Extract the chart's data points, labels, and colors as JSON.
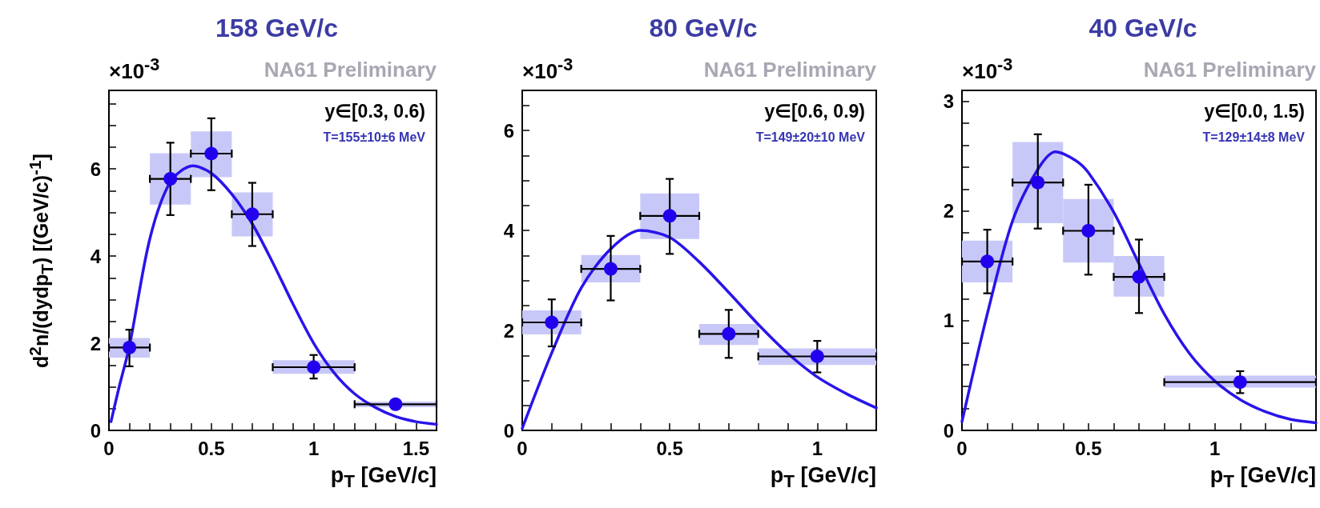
{
  "chart_data": [
    {
      "type": "scatter",
      "title": "158 GeV/c",
      "xlabel": "p$_{T}$ [GeV/c]",
      "ylabel": "d$^{2}$n/(dydp$_{T}$) [(GeV/c)$^{-1}$]",
      "annotations": [
        "×10$^{-3}$",
        "NA61 Preliminary",
        "y∈[0.3, 0.6)",
        "T=155±10±6 MeV"
      ],
      "xlim": [
        0,
        1.6
      ],
      "ylim": [
        0,
        7.8
      ],
      "xticks": [
        0,
        {
          "value": 0.1,
          "label": null
        },
        {
          "value": 0.2,
          "label": null
        },
        {
          "value": 0.3,
          "label": null
        },
        {
          "value": 0.4,
          "label": null
        },
        0.5,
        {
          "value": 0.6,
          "label": null
        },
        {
          "value": 0.7,
          "label": null
        },
        {
          "value": 0.8,
          "label": null
        },
        {
          "value": 0.9,
          "label": null
        },
        1,
        {
          "value": 1.1,
          "label": null
        },
        {
          "value": 1.2,
          "label": null
        },
        {
          "value": 1.3,
          "label": null
        },
        {
          "value": 1.4,
          "label": null
        },
        1.5,
        {
          "value": 1.6,
          "label": null
        }
      ],
      "yticks": [
        0,
        {
          "value": 0.5,
          "label": null
        },
        {
          "value": 1,
          "label": null
        },
        {
          "value": 1.5,
          "label": null
        },
        2,
        {
          "value": 2.5,
          "label": null
        },
        {
          "value": 3,
          "label": null
        },
        {
          "value": 3.5,
          "label": null
        },
        4,
        {
          "value": 4.5,
          "label": null
        },
        {
          "value": 5,
          "label": null
        },
        {
          "value": 5.5,
          "label": null
        },
        6,
        {
          "value": 6.5,
          "label": null
        },
        {
          "value": 7,
          "label": null
        },
        {
          "value": 7.5,
          "label": null
        }
      ],
      "grid": false,
      "series": [
        {
          "type": "bar",
          "color": "#c8c8f8",
          "x": [
            0.1,
            0.3,
            0.5,
            0.7,
            1.0,
            1.4
          ],
          "base": [
            1.67,
            5.18,
            5.81,
            4.45,
            1.3,
            0.53
          ],
          "values": [
            0.45,
            1.18,
            1.05,
            1.01,
            0.31,
            0.13
          ]
        },
        {
          "type": "line",
          "color": "#2a14ea",
          "line_style": "solid",
          "x": [
            0.01,
            0.05,
            0.1,
            0.2,
            0.3,
            0.41,
            0.5,
            0.6,
            0.7,
            0.8,
            0.9,
            1.0,
            1.1,
            1.2,
            1.3,
            1.4,
            1.5,
            1.6
          ],
          "values": [
            0.2,
            1.0,
            1.93,
            4.4,
            5.7,
            6.07,
            5.9,
            5.42,
            4.74,
            3.85,
            2.89,
            2.0,
            1.32,
            0.84,
            0.53,
            0.32,
            0.2,
            0.14
          ]
        },
        {
          "color": "#2200ee",
          "marker": "circle",
          "x": [
            0.1,
            0.3,
            0.5,
            0.7,
            1.0,
            1.4
          ],
          "values": [
            1.9,
            5.77,
            6.35,
            4.96,
            1.45,
            0.6
          ],
          "errors": [
            [
              1.47,
              2.31
            ],
            [
              4.94,
              6.6
            ],
            [
              5.51,
              7.16
            ],
            [
              4.23,
              5.68
            ],
            [
              1.19,
              1.73
            ],
            null
          ],
          "xerrors": [
            0.1,
            0.1,
            0.1,
            0.1,
            0.2,
            0.2
          ]
        }
      ]
    },
    {
      "type": "scatter",
      "title": "80 GeV/c",
      "xlabel": "p$_{T}$ [GeV/c]",
      "annotations": [
        "×10$^{-3}$",
        "NA61 Preliminary",
        "y∈[0.6, 0.9)",
        "T=149±20±10 MeV"
      ],
      "xlim": [
        0,
        1.2
      ],
      "ylim": [
        0,
        6.8
      ],
      "xticks": [
        0,
        {
          "value": 0.1,
          "label": null
        },
        {
          "value": 0.2,
          "label": null
        },
        {
          "value": 0.3,
          "label": null
        },
        {
          "value": 0.4,
          "label": null
        },
        0.5,
        {
          "value": 0.6,
          "label": null
        },
        {
          "value": 0.7,
          "label": null
        },
        {
          "value": 0.8,
          "label": null
        },
        {
          "value": 0.9,
          "label": null
        },
        1,
        {
          "value": 1.1,
          "label": null
        },
        {
          "value": 1.2,
          "label": null
        }
      ],
      "yticks": [
        0,
        {
          "value": 0.5,
          "label": null
        },
        {
          "value": 1,
          "label": null
        },
        {
          "value": 1.5,
          "label": null
        },
        2,
        {
          "value": 2.5,
          "label": null
        },
        {
          "value": 3,
          "label": null
        },
        {
          "value": 3.5,
          "label": null
        },
        4,
        {
          "value": 4.5,
          "label": null
        },
        {
          "value": 5,
          "label": null
        },
        {
          "value": 5.5,
          "label": null
        },
        6,
        {
          "value": 6.5,
          "label": null
        }
      ],
      "grid": false,
      "series": [
        {
          "type": "bar",
          "color": "#c8c8f8",
          "x": [
            0.1,
            0.3,
            0.5,
            0.7,
            1.0
          ],
          "base": [
            1.92,
            2.96,
            3.83,
            1.71,
            1.31
          ],
          "values": [
            0.48,
            0.55,
            0.91,
            0.42,
            0.33
          ]
        },
        {
          "type": "line",
          "color": "#2a14ea",
          "line_style": "solid",
          "x": [
            0,
            0.1,
            0.2,
            0.3,
            0.4,
            0.5,
            0.6,
            0.7,
            0.8,
            0.9,
            1.0,
            1.1,
            1.2
          ],
          "values": [
            0.04,
            1.55,
            2.85,
            3.63,
            4.0,
            3.86,
            3.37,
            2.76,
            2.12,
            1.54,
            1.07,
            0.73,
            0.45
          ]
        },
        {
          "color": "#2200ee",
          "marker": "circle",
          "x": [
            0.1,
            0.3,
            0.5,
            0.7,
            1.0
          ],
          "values": [
            2.16,
            3.23,
            4.29,
            1.93,
            1.48
          ],
          "errors": [
            [
              1.68,
              2.62
            ],
            [
              2.6,
              3.89
            ],
            [
              3.53,
              5.03
            ],
            [
              1.45,
              2.41
            ],
            [
              1.16,
              1.79
            ]
          ],
          "xerrors": [
            0.1,
            0.1,
            0.1,
            0.1,
            0.2
          ]
        }
      ]
    },
    {
      "type": "scatter",
      "title": "40 GeV/c",
      "xlabel": "p$_{T}$ [GeV/c]",
      "annotations": [
        "×10$^{-3}$",
        "NA61 Preliminary",
        "y∈[0.0, 1.5)",
        "T=129±14±8 MeV"
      ],
      "xlim": [
        0,
        1.4
      ],
      "ylim": [
        0,
        3.1
      ],
      "xticks": [
        0,
        {
          "value": 0.1,
          "label": null
        },
        {
          "value": 0.2,
          "label": null
        },
        {
          "value": 0.3,
          "label": null
        },
        {
          "value": 0.4,
          "label": null
        },
        0.5,
        {
          "value": 0.6,
          "label": null
        },
        {
          "value": 0.7,
          "label": null
        },
        {
          "value": 0.8,
          "label": null
        },
        {
          "value": 0.9,
          "label": null
        },
        1,
        {
          "value": 1.1,
          "label": null
        },
        {
          "value": 1.2,
          "label": null
        },
        {
          "value": 1.3,
          "label": null
        },
        {
          "value": 1.4,
          "label": null
        }
      ],
      "yticks": [
        0,
        {
          "value": 0.2,
          "label": null
        },
        {
          "value": 0.4,
          "label": null
        },
        {
          "value": 0.6,
          "label": null
        },
        {
          "value": 0.8,
          "label": null
        },
        1,
        {
          "value": 1.2,
          "label": null
        },
        {
          "value": 1.4,
          "label": null
        },
        {
          "value": 1.6,
          "label": null
        },
        {
          "value": 1.8,
          "label": null
        },
        2,
        {
          "value": 2.2,
          "label": null
        },
        {
          "value": 2.4,
          "label": null
        },
        {
          "value": 2.6,
          "label": null
        },
        {
          "value": 2.8,
          "label": null
        },
        3
      ],
      "grid": false,
      "series": [
        {
          "type": "bar",
          "color": "#c8c8f8",
          "x": [
            0.1,
            0.3,
            0.5,
            0.7,
            1.1
          ],
          "base": [
            1.35,
            1.89,
            1.53,
            1.22,
            0.39
          ],
          "values": [
            0.38,
            0.74,
            0.58,
            0.37,
            0.11
          ]
        },
        {
          "type": "line",
          "color": "#2a14ea",
          "line_style": "solid",
          "x": [
            0,
            0.1,
            0.2,
            0.3,
            0.37,
            0.45,
            0.5,
            0.6,
            0.7,
            0.8,
            0.9,
            1.0,
            1.1,
            1.2,
            1.3,
            1.4
          ],
          "values": [
            0.08,
            1.06,
            1.91,
            2.38,
            2.54,
            2.46,
            2.35,
            1.99,
            1.52,
            1.06,
            0.7,
            0.45,
            0.28,
            0.17,
            0.1,
            0.07
          ]
        },
        {
          "color": "#2200ee",
          "marker": "circle",
          "x": [
            0.1,
            0.3,
            0.5,
            0.7,
            1.1
          ],
          "values": [
            1.54,
            2.26,
            1.82,
            1.4,
            0.44
          ],
          "errors": [
            [
              1.25,
              1.83
            ],
            [
              1.84,
              2.7
            ],
            [
              1.42,
              2.24
            ],
            [
              1.07,
              1.74
            ],
            [
              0.34,
              0.54
            ]
          ],
          "xerrors": [
            0.1,
            0.1,
            0.1,
            0.1,
            0.3
          ]
        }
      ]
    }
  ]
}
